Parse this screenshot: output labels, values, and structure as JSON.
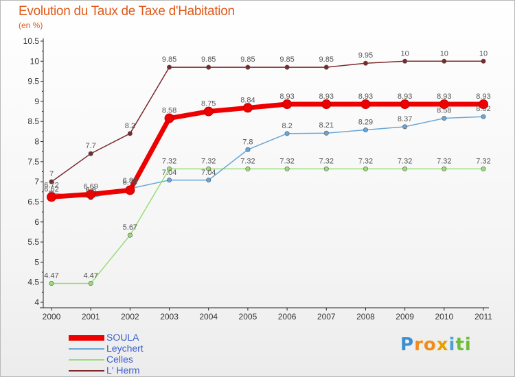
{
  "title": "Evolution du Taux de Taxe d'Habitation",
  "subtitle": "(en %)",
  "chart_data": {
    "type": "line",
    "x": [
      2000,
      2001,
      2002,
      2003,
      2004,
      2005,
      2006,
      2007,
      2008,
      2009,
      2010,
      2011
    ],
    "ylim": [
      4,
      10.5
    ],
    "yticks": [
      4,
      4.5,
      5,
      5.5,
      6,
      6.5,
      7,
      7.5,
      8,
      8.5,
      9,
      9.5,
      10,
      10.5
    ],
    "grid": false,
    "legend_placement": "bottom-left",
    "series": [
      {
        "name": "L' Herm",
        "color": "#7a2a2a",
        "width": 1.5,
        "values": [
          7,
          7.7,
          8.2,
          9.85,
          9.85,
          9.85,
          9.85,
          9.85,
          9.95,
          10,
          10,
          10
        ]
      },
      {
        "name": "Celles",
        "color": "#99dd77",
        "width": 1.5,
        "values": [
          4.47,
          4.47,
          5.67,
          7.32,
          7.32,
          7.32,
          7.32,
          7.32,
          7.32,
          7.32,
          7.32,
          7.32
        ]
      },
      {
        "name": "Leychert",
        "color": "#6aa6d6",
        "width": 1.5,
        "values": [
          6.72,
          6.6,
          6.83,
          7.04,
          7.04,
          7.8,
          8.2,
          8.21,
          8.29,
          8.37,
          8.58,
          8.62
        ]
      },
      {
        "name": "SOULA",
        "color": "#ee0000",
        "width": 7,
        "values": [
          6.62,
          6.69,
          6.79,
          8.58,
          8.75,
          8.84,
          8.93,
          8.93,
          8.93,
          8.93,
          8.93,
          8.93
        ]
      }
    ],
    "legend_order": [
      "SOULA",
      "Leychert",
      "Celles",
      "L' Herm"
    ]
  },
  "logo": {
    "letters": [
      "P",
      "r",
      "o",
      "x",
      "i",
      "t",
      "i"
    ],
    "colors": [
      "#3a8fd0",
      "#f08c1a",
      "#f08c1a",
      "#e8a000",
      "#4aa0d8",
      "#6cbd3c",
      "#6cbd3c"
    ]
  }
}
